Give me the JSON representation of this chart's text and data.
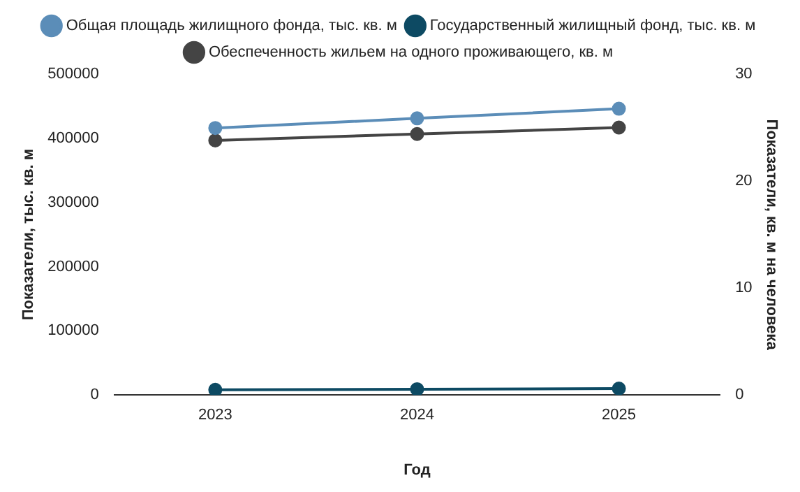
{
  "chart_data": {
    "type": "line",
    "xlabel": "Год",
    "ylabel": "Показатели, тыс. кв. м",
    "y2label": "Показатели, кв. м на человека",
    "categories": [
      "2023",
      "2024",
      "2025"
    ],
    "series": [
      {
        "name": "Общая площадь жилищного фонда, тыс. кв. м",
        "color": "#5b8db8",
        "values": [
          416000,
          431000,
          446000
        ]
      },
      {
        "name": "Государственный жилищный фонд, тыс. кв. м",
        "color": "#0d4a63",
        "values": [
          8000,
          9000,
          10000
        ]
      },
      {
        "name": "Обеспеченность жильем на одного проживающего, кв. м",
        "color": "#444444",
        "values": [
          23.8,
          24.4,
          25.0
        ],
        "axis": "y2"
      }
    ],
    "ylim": [
      0,
      500000
    ],
    "yticks": [
      0,
      100000,
      200000,
      300000,
      400000,
      500000
    ],
    "y2lim": [
      0,
      30
    ],
    "y2ticks": [
      0,
      10,
      20,
      30
    ],
    "legend": "top",
    "marker": "circle",
    "grid": false
  }
}
